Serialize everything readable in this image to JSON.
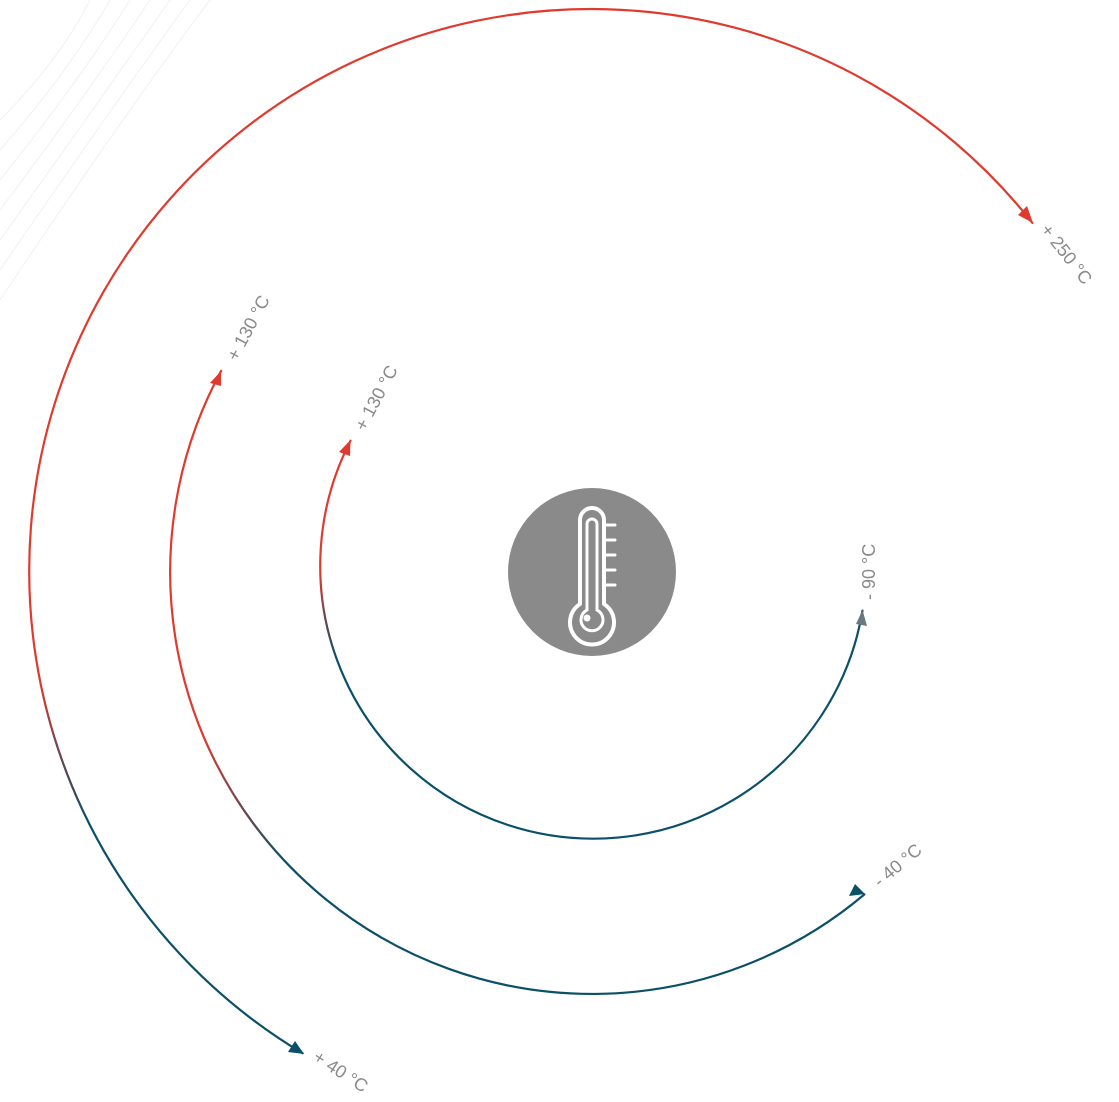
{
  "colors": {
    "hot": "#e03a2f",
    "cold": "#0a5068",
    "neutral": "#6a7880",
    "icon_background": "#8a8a8a",
    "icon_glyph": "#ffffff",
    "label": "#8a8a8a"
  },
  "center_icon": {
    "name": "thermometer-icon"
  },
  "ranges": [
    {
      "id": "outer",
      "start_label": "+ 40 °C",
      "end_label": "+ 250 °C"
    },
    {
      "id": "middle",
      "start_label": "- 40 °C",
      "end_label": "+ 130 °C"
    },
    {
      "id": "inner",
      "start_label": "- 90 °C",
      "end_label": "+ 130 °C"
    }
  ]
}
